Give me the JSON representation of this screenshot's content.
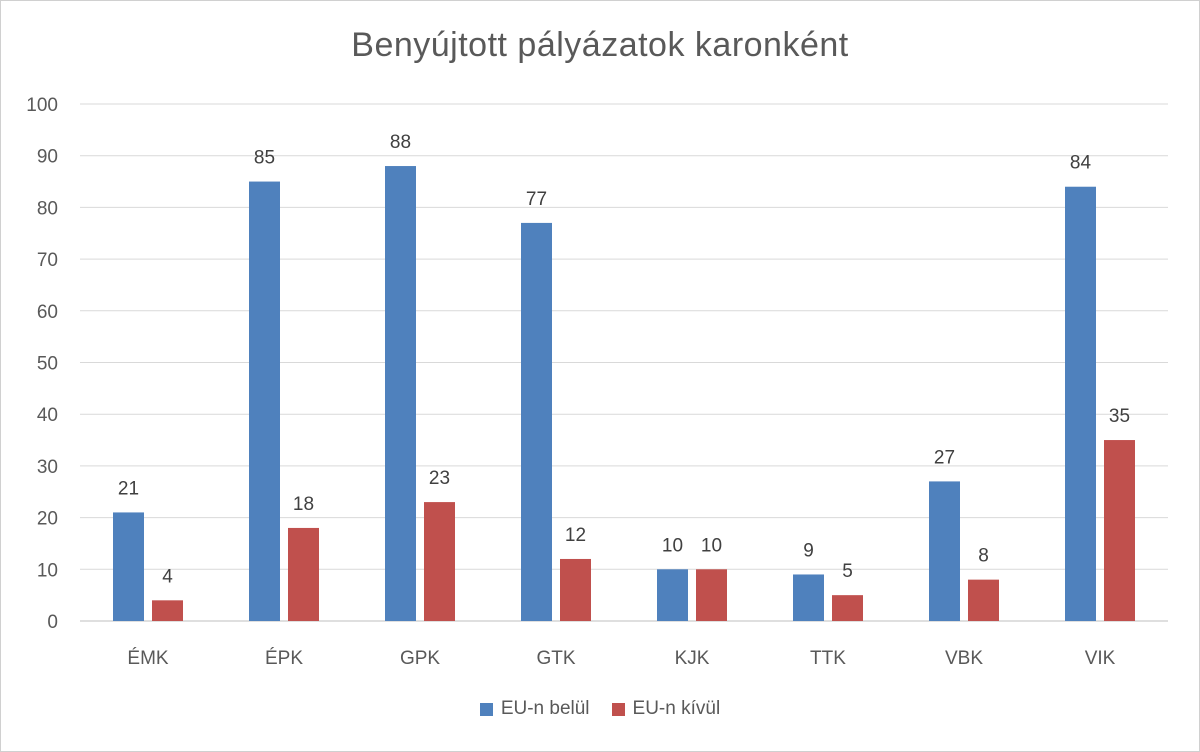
{
  "chart_data": {
    "type": "bar",
    "title": "Benyújtott pályázatok karonként",
    "categories": [
      "ÉMK",
      "ÉPK",
      "GPK",
      "GTK",
      "KJK",
      "TTK",
      "VBK",
      "VIK"
    ],
    "series": [
      {
        "name": "EU-n belül",
        "values": [
          21,
          85,
          88,
          77,
          10,
          9,
          27,
          84
        ],
        "color": "#4f81bd"
      },
      {
        "name": "EU-n kívül",
        "values": [
          4,
          18,
          23,
          12,
          10,
          5,
          8,
          35
        ],
        "color": "#c0504d"
      }
    ],
    "ylim": [
      0,
      100
    ],
    "yticks": [
      0,
      10,
      20,
      30,
      40,
      50,
      60,
      70,
      80,
      90,
      100
    ],
    "grid": true,
    "legend": "bottom",
    "data_labels": true
  }
}
